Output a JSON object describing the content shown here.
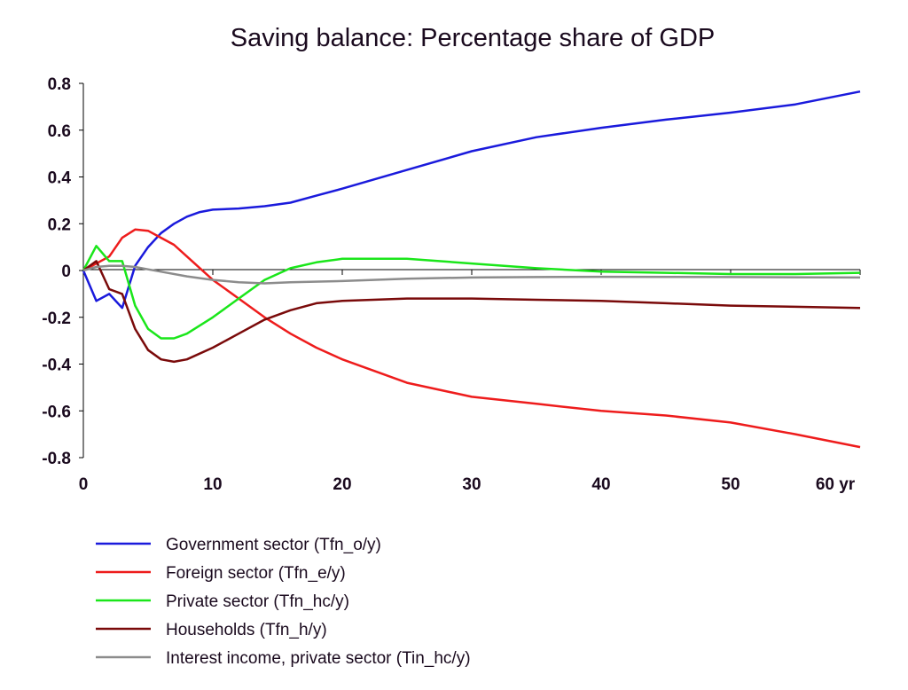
{
  "chart_data": {
    "type": "line",
    "title": "Saving balance: Percentage share of GDP",
    "xlabel": "",
    "ylabel": "",
    "xlim": [
      0,
      60
    ],
    "ylim": [
      -0.8,
      0.8
    ],
    "x_ticks": [
      0,
      10,
      20,
      30,
      40,
      50,
      60
    ],
    "x_tick_labels": [
      "0",
      "10",
      "20",
      "30",
      "40",
      "50",
      "60 yr"
    ],
    "y_ticks": [
      0.8,
      0.6,
      0.4,
      0.2,
      0,
      -0.2,
      -0.4,
      -0.6,
      -0.8
    ],
    "y_tick_labels": [
      "0.8",
      "0.6",
      "0.4",
      "0.2",
      "0",
      "-0.2",
      "-0.4",
      "-0.6",
      "-0.8"
    ],
    "grid": false,
    "zero_line": true,
    "legend_position": "bottom-left",
    "series": [
      {
        "name": "Government sector (Tfn_o/y)",
        "color": "#1a1adc",
        "points": [
          [
            0,
            0
          ],
          [
            1,
            -0.13
          ],
          [
            2,
            -0.1
          ],
          [
            3,
            -0.16
          ],
          [
            4,
            0.02
          ],
          [
            5,
            0.1
          ],
          [
            6,
            0.16
          ],
          [
            7,
            0.2
          ],
          [
            8,
            0.23
          ],
          [
            9,
            0.25
          ],
          [
            10,
            0.26
          ],
          [
            12,
            0.265
          ],
          [
            14,
            0.275
          ],
          [
            16,
            0.29
          ],
          [
            18,
            0.32
          ],
          [
            20,
            0.35
          ],
          [
            25,
            0.43
          ],
          [
            30,
            0.51
          ],
          [
            35,
            0.57
          ],
          [
            40,
            0.61
          ],
          [
            45,
            0.645
          ],
          [
            50,
            0.675
          ],
          [
            55,
            0.71
          ],
          [
            60,
            0.765
          ]
        ]
      },
      {
        "name": "Foreign sector (Tfn_e/y)",
        "color": "#ee1c1c",
        "points": [
          [
            0,
            0
          ],
          [
            1,
            0.03
          ],
          [
            2,
            0.06
          ],
          [
            3,
            0.14
          ],
          [
            4,
            0.175
          ],
          [
            5,
            0.17
          ],
          [
            6,
            0.14
          ],
          [
            7,
            0.11
          ],
          [
            8,
            0.06
          ],
          [
            10,
            -0.04
          ],
          [
            12,
            -0.12
          ],
          [
            14,
            -0.2
          ],
          [
            16,
            -0.27
          ],
          [
            18,
            -0.33
          ],
          [
            20,
            -0.38
          ],
          [
            25,
            -0.48
          ],
          [
            30,
            -0.54
          ],
          [
            35,
            -0.57
          ],
          [
            40,
            -0.6
          ],
          [
            45,
            -0.62
          ],
          [
            50,
            -0.65
          ],
          [
            55,
            -0.7
          ],
          [
            60,
            -0.755
          ]
        ]
      },
      {
        "name": "Private sector (Tfn_hc/y)",
        "color": "#1ae61a",
        "points": [
          [
            0,
            0
          ],
          [
            1,
            0.105
          ],
          [
            2,
            0.04
          ],
          [
            3,
            0.04
          ],
          [
            4,
            -0.15
          ],
          [
            5,
            -0.25
          ],
          [
            6,
            -0.29
          ],
          [
            7,
            -0.29
          ],
          [
            8,
            -0.27
          ],
          [
            10,
            -0.2
          ],
          [
            12,
            -0.12
          ],
          [
            14,
            -0.04
          ],
          [
            16,
            0.01
          ],
          [
            18,
            0.035
          ],
          [
            20,
            0.05
          ],
          [
            25,
            0.05
          ],
          [
            30,
            0.03
          ],
          [
            35,
            0.01
          ],
          [
            40,
            -0.005
          ],
          [
            45,
            -0.01
          ],
          [
            50,
            -0.015
          ],
          [
            55,
            -0.015
          ],
          [
            60,
            -0.01
          ]
        ]
      },
      {
        "name": "Households (Tfn_h/y)",
        "color": "#7a0a0a",
        "points": [
          [
            0,
            0
          ],
          [
            1,
            0.04
          ],
          [
            2,
            -0.08
          ],
          [
            3,
            -0.1
          ],
          [
            4,
            -0.25
          ],
          [
            5,
            -0.34
          ],
          [
            6,
            -0.38
          ],
          [
            7,
            -0.39
          ],
          [
            8,
            -0.38
          ],
          [
            10,
            -0.33
          ],
          [
            12,
            -0.27
          ],
          [
            14,
            -0.21
          ],
          [
            16,
            -0.17
          ],
          [
            18,
            -0.14
          ],
          [
            20,
            -0.13
          ],
          [
            25,
            -0.12
          ],
          [
            30,
            -0.12
          ],
          [
            35,
            -0.125
          ],
          [
            40,
            -0.13
          ],
          [
            45,
            -0.14
          ],
          [
            50,
            -0.15
          ],
          [
            55,
            -0.155
          ],
          [
            60,
            -0.16
          ]
        ]
      },
      {
        "name": "Interest income, private sector (Tin_hc/y)",
        "color": "#8c8c8c",
        "points": [
          [
            0,
            0
          ],
          [
            1,
            0.015
          ],
          [
            2,
            0.02
          ],
          [
            3,
            0.02
          ],
          [
            4,
            0.015
          ],
          [
            5,
            0.005
          ],
          [
            6,
            -0.005
          ],
          [
            8,
            -0.025
          ],
          [
            10,
            -0.04
          ],
          [
            12,
            -0.05
          ],
          [
            14,
            -0.055
          ],
          [
            16,
            -0.05
          ],
          [
            20,
            -0.045
          ],
          [
            25,
            -0.035
          ],
          [
            30,
            -0.03
          ],
          [
            35,
            -0.028
          ],
          [
            40,
            -0.027
          ],
          [
            50,
            -0.028
          ],
          [
            60,
            -0.03
          ]
        ]
      }
    ]
  }
}
